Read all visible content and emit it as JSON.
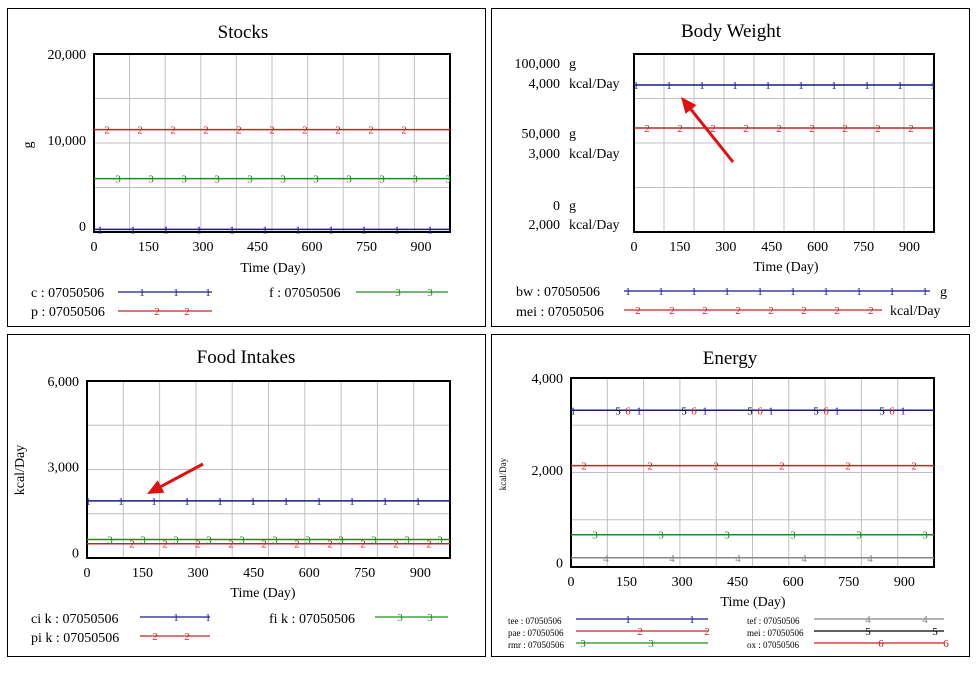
{
  "colors": {
    "series1": "#1a1a8c",
    "series2": "#cc2222",
    "series3": "#228b22",
    "series4": "#888888",
    "series5": "#000000",
    "series6": "#cc2222",
    "grid": "#c0c0c0",
    "arrow": "#e01010"
  },
  "chart_data": [
    {
      "type": "line",
      "title": "Stocks",
      "xlabel": "Time (Day)",
      "ylabel": "g",
      "xlim": [
        0,
        980
      ],
      "ylim": [
        -700,
        20000
      ],
      "grid": true,
      "x_ticks": [
        "0",
        "150",
        "300",
        "450",
        "600",
        "750",
        "900"
      ],
      "y_ticks": [
        "0",
        "10,000",
        "20,000"
      ],
      "series": [
        {
          "name": "c : 07050506",
          "marker": "1",
          "color": "series1",
          "x": [
            0,
            980
          ],
          "values": [
            -400,
            -400
          ]
        },
        {
          "name": "p : 07050506",
          "marker": "2",
          "color": "series2",
          "x": [
            0,
            980
          ],
          "values": [
            11200,
            11200
          ]
        },
        {
          "name": "f : 07050506",
          "marker": "3",
          "color": "series3",
          "x": [
            0,
            980
          ],
          "values": [
            5500,
            5500
          ]
        }
      ]
    },
    {
      "type": "line",
      "title": "Body Weight",
      "xlabel": "Time (Day)",
      "xlim": [
        0,
        980
      ],
      "grid": true,
      "x_ticks": [
        "0",
        "150",
        "300",
        "450",
        "600",
        "750",
        "900"
      ],
      "y_tick_rows": [
        [
          "100,000",
          "g",
          "4,000",
          "kcal/Day"
        ],
        [
          "50,000",
          "g",
          "3,000",
          "kcal/Day"
        ],
        [
          "0",
          "g",
          "2,000",
          "kcal/Day"
        ]
      ],
      "series": [
        {
          "name": "bw : 07050506",
          "unit": "g",
          "marker": "1",
          "color": "series1",
          "x": [
            0,
            980
          ],
          "values": [
            90000,
            90000
          ]
        },
        {
          "name": "mei : 07050506",
          "unit": "kcal/Day",
          "marker": "2",
          "color": "series2",
          "x": [
            0,
            980
          ],
          "values": [
            3400,
            3400
          ]
        }
      ]
    },
    {
      "type": "line",
      "title": "Food Intakes",
      "xlabel": "Time (Day)",
      "ylabel": "kcal/Day",
      "xlim": [
        0,
        980
      ],
      "ylim": [
        -200,
        6000
      ],
      "grid": true,
      "x_ticks": [
        "0",
        "150",
        "300",
        "450",
        "600",
        "750",
        "900"
      ],
      "y_ticks": [
        "0",
        "3,000",
        "6,000"
      ],
      "series": [
        {
          "name": "ci k : 07050506",
          "marker": "1",
          "color": "series1",
          "x": [
            0,
            980
          ],
          "values": [
            1800,
            1800
          ]
        },
        {
          "name": "pi k : 07050506",
          "marker": "2",
          "color": "series2",
          "x": [
            0,
            980
          ],
          "values": [
            300,
            300
          ]
        },
        {
          "name": "fi k : 07050506",
          "marker": "3",
          "color": "series3",
          "x": [
            0,
            980
          ],
          "values": [
            450,
            450
          ]
        }
      ]
    },
    {
      "type": "line",
      "title": "Energy",
      "xlabel": "Time (Day)",
      "ylabel": "kcal/Day",
      "xlim": [
        0,
        980
      ],
      "ylim": [
        -100,
        4000
      ],
      "grid": true,
      "x_ticks": [
        "0",
        "150",
        "300",
        "450",
        "600",
        "750",
        "900"
      ],
      "y_ticks": [
        "0",
        "2,000",
        "4,000"
      ],
      "series": [
        {
          "name": "tee : 07050506",
          "marker": "1",
          "color": "series1",
          "x": [
            0,
            980
          ],
          "values": [
            3300,
            3300
          ]
        },
        {
          "name": "pae : 07050506",
          "marker": "2",
          "color": "series2",
          "x": [
            0,
            980
          ],
          "values": [
            2100,
            2100
          ]
        },
        {
          "name": "rmr : 07050506",
          "marker": "3",
          "color": "series3",
          "x": [
            0,
            980
          ],
          "values": [
            600,
            600
          ]
        },
        {
          "name": "tef : 07050506",
          "marker": "4",
          "color": "series4",
          "x": [
            0,
            980
          ],
          "values": [
            100,
            100
          ]
        },
        {
          "name": "mei : 07050506",
          "marker": "5",
          "color": "series5",
          "x": [
            0,
            980
          ],
          "values": [
            3300,
            3300
          ]
        },
        {
          "name": "ox : 07050506",
          "marker": "6",
          "color": "series6",
          "x": [
            0,
            980
          ],
          "values": [
            3300,
            3300
          ]
        }
      ]
    }
  ]
}
